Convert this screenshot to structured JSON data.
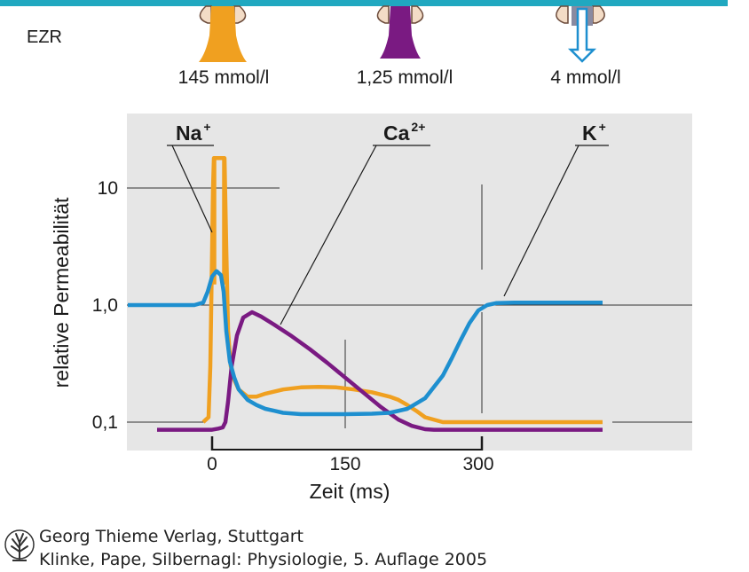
{
  "membrane": {
    "label": "EZR",
    "concentrations": [
      "145 mmol/l",
      "1,25 mmol/l",
      "4 mmol/l"
    ]
  },
  "colors": {
    "Na": "#f0a020",
    "Ca": "#7a1a82",
    "K": "#1e8fcf",
    "membrane": "#20a8c0",
    "plot_bg": "#e6e6e6"
  },
  "chart_data": {
    "type": "line",
    "xlabel": "Zeit (ms)",
    "ylabel": "relative Permeabilität",
    "y_scale": "log",
    "xlim": [
      -70,
      380
    ],
    "ylim": [
      0.075,
      40
    ],
    "x_ticks": [
      0,
      150,
      300
    ],
    "x_tick_labels": [
      "0",
      "150",
      "300"
    ],
    "y_ticks": [
      0.1,
      1.0,
      10
    ],
    "y_tick_labels": [
      "0,1",
      "1,0",
      "10"
    ],
    "grid": true,
    "series": [
      {
        "name": "Na",
        "label_base": "Na",
        "label_sup": "+",
        "x": [
          -10,
          -7,
          -4,
          -2,
          0,
          1,
          2,
          3,
          5,
          7,
          8,
          10,
          12,
          14,
          16,
          18,
          21,
          25,
          30,
          40,
          50,
          60,
          80,
          100,
          120,
          140,
          160,
          180,
          200,
          210,
          220,
          230,
          240,
          260,
          300,
          350,
          440
        ],
        "y": [
          0.1,
          0.105,
          0.11,
          0.3,
          3,
          10,
          18,
          18,
          18,
          18,
          18,
          18,
          18,
          18,
          3,
          0.6,
          0.3,
          0.23,
          0.19,
          0.165,
          0.165,
          0.175,
          0.19,
          0.198,
          0.2,
          0.198,
          0.19,
          0.18,
          0.165,
          0.155,
          0.14,
          0.125,
          0.11,
          0.1,
          0.1,
          0.1,
          0.1
        ]
      },
      {
        "name": "Ca",
        "label_base": "Ca",
        "label_sup": "2+",
        "x": [
          -62,
          0,
          7,
          12,
          15,
          18,
          22,
          28,
          35,
          45,
          55,
          70,
          90,
          110,
          130,
          150,
          170,
          190,
          210,
          225,
          240,
          250,
          300,
          440
        ],
        "y": [
          0.086,
          0.086,
          0.088,
          0.09,
          0.1,
          0.15,
          0.3,
          0.55,
          0.78,
          0.87,
          0.8,
          0.68,
          0.54,
          0.42,
          0.32,
          0.24,
          0.18,
          0.135,
          0.105,
          0.093,
          0.087,
          0.086,
          0.086,
          0.086
        ]
      },
      {
        "name": "K",
        "label_base": "K",
        "label_sup": "+",
        "x": [
          -95,
          -30,
          -20,
          -10,
          -5,
          0,
          5,
          10,
          13,
          16,
          20,
          25,
          30,
          40,
          50,
          60,
          70,
          80,
          100,
          150,
          180,
          200,
          220,
          240,
          260,
          270,
          280,
          290,
          300,
          310,
          320,
          340,
          380,
          440
        ],
        "y": [
          1.0,
          1.0,
          1.0,
          1.05,
          1.3,
          1.75,
          1.95,
          1.8,
          1.3,
          0.6,
          0.33,
          0.24,
          0.19,
          0.155,
          0.14,
          0.13,
          0.125,
          0.12,
          0.117,
          0.117,
          0.118,
          0.12,
          0.13,
          0.16,
          0.25,
          0.35,
          0.5,
          0.7,
          0.9,
          1.0,
          1.04,
          1.05,
          1.05,
          1.05
        ]
      }
    ]
  },
  "credit": {
    "line1": "Georg Thieme Verlag, Stuttgart",
    "line2": "Klinke, Pape, Silbernagl: Physiologie, 5. Auflage 2005"
  }
}
